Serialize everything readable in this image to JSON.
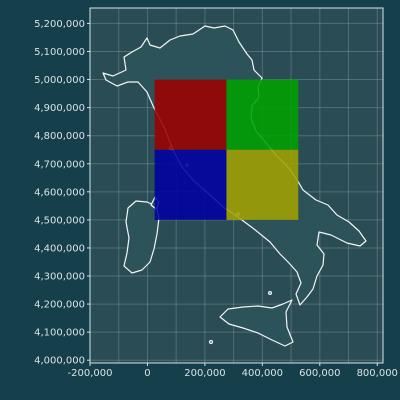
{
  "chart_data": {
    "type": "map",
    "x_axis": {
      "range": [
        -200000,
        820000
      ],
      "ticks": [
        -200000,
        0,
        200000,
        400000,
        600000,
        800000
      ],
      "tick_labels": [
        "-200,000",
        "0",
        "200,000",
        "400,000",
        "600,000",
        "800,000"
      ]
    },
    "y_axis": {
      "range": [
        3990000,
        5255000
      ],
      "ticks": [
        4000000,
        4100000,
        4200000,
        4300000,
        4400000,
        4500000,
        4600000,
        4700000,
        4800000,
        4900000,
        5000000,
        5100000,
        5200000
      ],
      "tick_labels": [
        "4,000,000",
        "4,100,000",
        "4,200,000",
        "4,300,000",
        "4,400,000",
        "4,500,000",
        "4,600,000",
        "4,700,000",
        "4,800,000",
        "4,900,000",
        "5,000,000",
        "5,100,000",
        "5,200,000"
      ]
    },
    "grid": true,
    "quadrants": [
      {
        "name": "top-left",
        "x": [
          25000,
          275000
        ],
        "y": [
          4750000,
          5000000
        ],
        "color": "#9c0000",
        "opacity": 0.88
      },
      {
        "name": "top-right",
        "x": [
          275000,
          525000
        ],
        "y": [
          4750000,
          5000000
        ],
        "color": "#00a000",
        "opacity": 0.88
      },
      {
        "name": "bottom-left",
        "x": [
          25000,
          275000
        ],
        "y": [
          4500000,
          4750000
        ],
        "color": "#0000a0",
        "opacity": 0.88
      },
      {
        "name": "bottom-right",
        "x": [
          275000,
          525000
        ],
        "y": [
          4500000,
          4750000
        ],
        "color": "#a0a000",
        "opacity": 0.88
      }
    ],
    "colors": {
      "background": "#153f4b",
      "land": "#2d535a",
      "coastline": "#f2f5f6"
    }
  }
}
